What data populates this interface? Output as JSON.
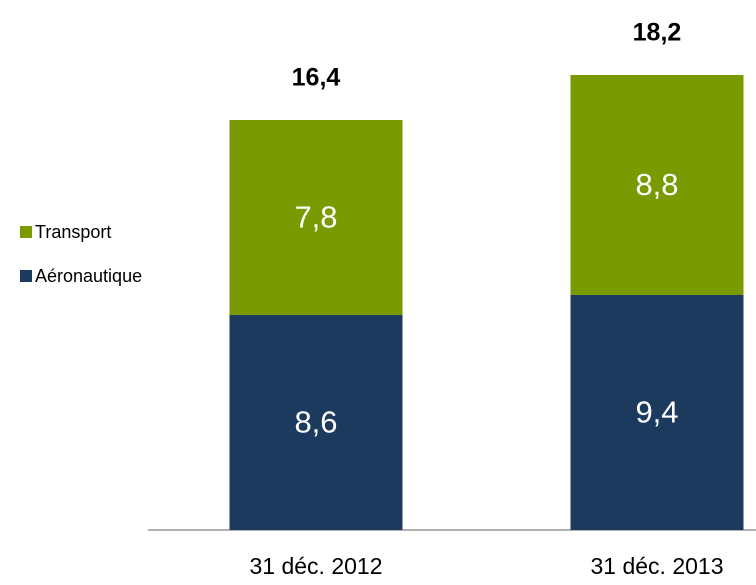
{
  "chart_data": {
    "type": "stacked-bar",
    "categories": [
      "31 déc. 2012",
      "31 déc. 2013"
    ],
    "series": [
      {
        "name": "Aéronautique",
        "color": "#1c3a5e",
        "values": [
          8.6,
          9.4
        ],
        "value_labels": [
          "8,6",
          "9,4"
        ]
      },
      {
        "name": "Transport",
        "color": "#7a9a01",
        "values": [
          7.8,
          8.8
        ],
        "value_labels": [
          "7,8",
          "8,8"
        ]
      }
    ],
    "totals": [
      16.4,
      18.2
    ],
    "total_labels": [
      "16,4",
      "18,2"
    ]
  }
}
